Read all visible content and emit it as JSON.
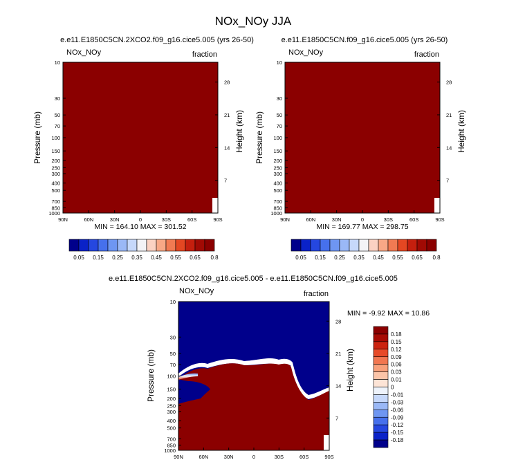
{
  "figure_title": "NOx_NOy JJA",
  "colors": {
    "dark_red": "#8b0000",
    "ref_scale": [
      "#00008b",
      "#0a22c8",
      "#2547e0",
      "#4670ec",
      "#6e96f2",
      "#9ab8f6",
      "#c6d8fa",
      "#f3f3f6",
      "#fbd2c2",
      "#f8a886",
      "#f17a52",
      "#e44722",
      "#c51f0e",
      "#a10a04",
      "#8b0000"
    ],
    "diff_scale": [
      "#00008b",
      "#0a22c8",
      "#2547e0",
      "#4670ec",
      "#6e96f2",
      "#9ab8f6",
      "#c6d8fa",
      "#eef3fb",
      "#fde4d6",
      "#fbc4a8",
      "#f8a07b",
      "#f27650",
      "#e74a28",
      "#cc2410",
      "#a70b04",
      "#8b0000"
    ]
  },
  "chart_data": [
    {
      "type": "heatmap",
      "id": "ref-case",
      "title": "e.e11.E1850C5CN.2XCO2.f09_g16.cice5.005 (yrs 26-50)",
      "left_label": "NOx_NOy",
      "right_label": "fraction",
      "ylabel": "Pressure (mb)",
      "y2label": "Height (km)",
      "x_ticks": [
        "90N",
        "60N",
        "30N",
        "0",
        "30S",
        "60S",
        "90S"
      ],
      "y_ticks": [
        "10",
        "30",
        "50",
        "70",
        "100",
        "150",
        "200",
        "250",
        "300",
        "400",
        "500",
        "700",
        "850",
        "1000"
      ],
      "y2_ticks": [
        "28",
        "21",
        "14",
        "7"
      ],
      "stats": "MIN = 164.10   MAX = 301.52",
      "colorbar_labels": [
        "0.05",
        "0.15",
        "0.25",
        "0.35",
        "0.45",
        "0.55",
        "0.65",
        "0.8"
      ],
      "field_value": "above 0.8"
    },
    {
      "type": "heatmap",
      "id": "test-case",
      "title": "e.e11.E1850C5CN.f09_g16.cice5.005 (yrs 26-50)",
      "left_label": "NOx_NOy",
      "right_label": "fraction",
      "ylabel": "Pressure (mb)",
      "y2label": "Height (km)",
      "x_ticks": [
        "90N",
        "60N",
        "30N",
        "0",
        "30S",
        "60S",
        "90S"
      ],
      "y_ticks": [
        "10",
        "30",
        "50",
        "70",
        "100",
        "150",
        "200",
        "250",
        "300",
        "400",
        "500",
        "700",
        "850",
        "1000"
      ],
      "y2_ticks": [
        "28",
        "21",
        "14",
        "7"
      ],
      "stats": "MIN = 169.77   MAX = 298.75",
      "colorbar_labels": [
        "0.05",
        "0.15",
        "0.25",
        "0.35",
        "0.45",
        "0.55",
        "0.65",
        "0.8"
      ],
      "field_value": "above 0.8"
    },
    {
      "type": "heatmap",
      "id": "difference",
      "title": "e.e11.E1850C5CN.2XCO2.f09_g16.cice5.005 - e.e11.E1850C5CN.f09_g16.cice5.005",
      "left_label": "NOx_NOy",
      "right_label": "fraction",
      "ylabel": "Pressure (mb)",
      "y2label": "Height (km)",
      "x_ticks": [
        "90N",
        "60N",
        "30N",
        "0",
        "30S",
        "60S",
        "90S"
      ],
      "y_ticks": [
        "10",
        "30",
        "50",
        "70",
        "100",
        "150",
        "200",
        "250",
        "300",
        "400",
        "500",
        "700",
        "850",
        "1000"
      ],
      "y2_ticks": [
        "28",
        "21",
        "14",
        "7"
      ],
      "stats": "MIN = -9.92   MAX = 10.86",
      "colorbar_labels": [
        "0.18",
        "0.15",
        "0.12",
        "0.09",
        "0.06",
        "0.03",
        "0.01",
        "0",
        "-0.01",
        "-0.03",
        "-0.06",
        "-0.09",
        "-0.12",
        "-0.15",
        "-0.18"
      ],
      "field_note": "negative above ~100-150 mb, positive below"
    }
  ]
}
